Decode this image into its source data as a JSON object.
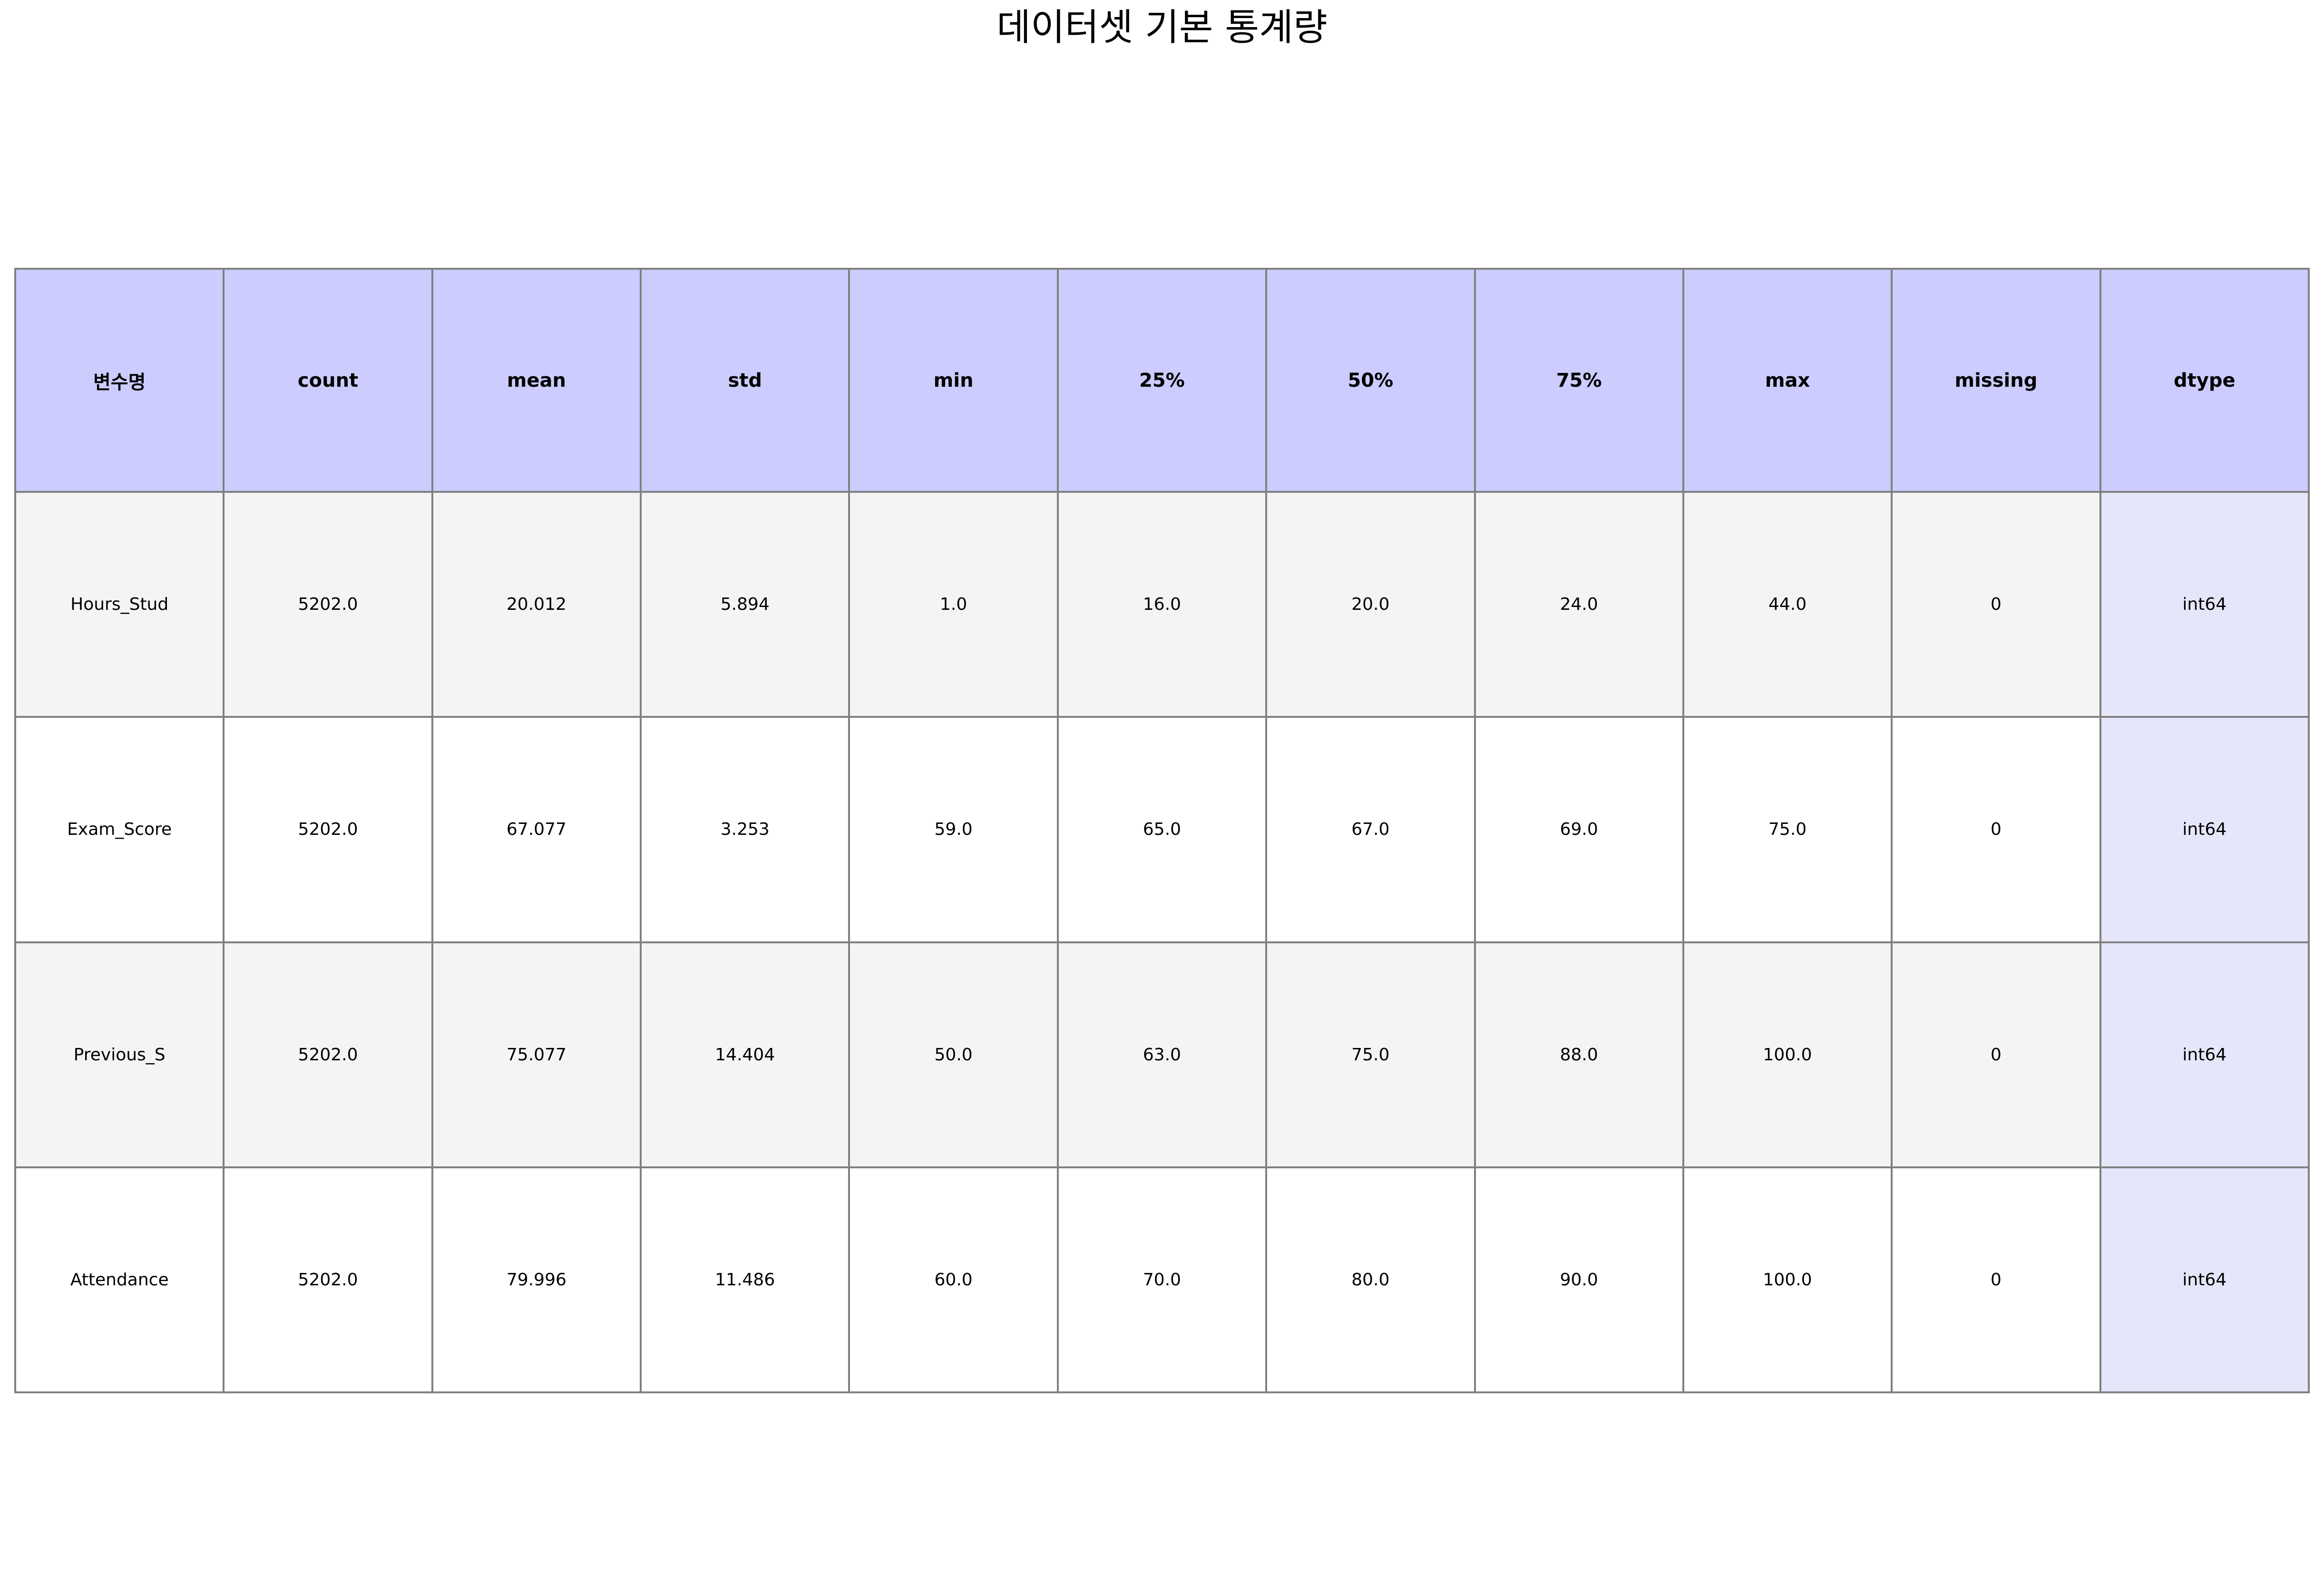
{
  "chart_data": {
    "type": "table",
    "title": "데이터셋 기본 통계량",
    "columns": [
      "변수명",
      "count",
      "mean",
      "std",
      "min",
      "25%",
      "50%",
      "75%",
      "max",
      "missing",
      "dtype"
    ],
    "rows": [
      [
        "Hours_Stud",
        "5202.0",
        "20.012",
        "5.894",
        "1.0",
        "16.0",
        "20.0",
        "24.0",
        "44.0",
        "0",
        "int64"
      ],
      [
        "Exam_Score",
        "5202.0",
        "67.077",
        "3.253",
        "59.0",
        "65.0",
        "67.0",
        "69.0",
        "75.0",
        "0",
        "int64"
      ],
      [
        "Previous_S",
        "5202.0",
        "75.077",
        "14.404",
        "50.0",
        "63.0",
        "75.0",
        "88.0",
        "100.0",
        "0",
        "int64"
      ],
      [
        "Attendance",
        "5202.0",
        "79.996",
        "11.486",
        "60.0",
        "70.0",
        "80.0",
        "90.0",
        "100.0",
        "0",
        "int64"
      ]
    ],
    "colors": {
      "header_bg": "#ccccff",
      "row_alt_bg": "#f4f4f4",
      "row_bg": "#ffffff",
      "dtype_bg": "#e6e6fa",
      "border": "#808080"
    }
  }
}
